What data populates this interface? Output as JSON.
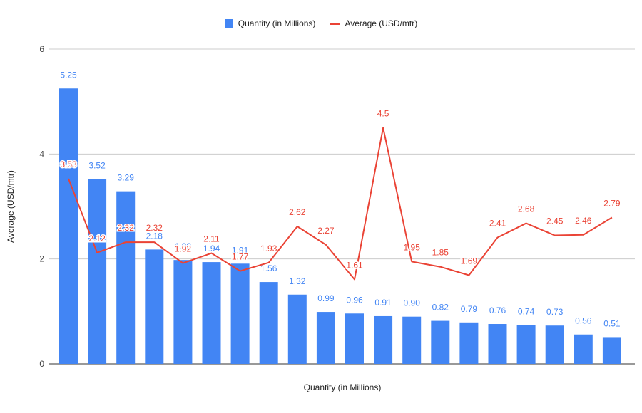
{
  "chart_data": {
    "type": "bar+line",
    "xlabel": "Quantity (in Millions)",
    "ylabel": "Average (USD/mtr)",
    "ylim": [
      0,
      6
    ],
    "yticks": [
      0,
      2,
      4,
      6
    ],
    "grid": true,
    "legend_position": "top",
    "series": [
      {
        "name": "Quantity (in Millions)",
        "type": "bar",
        "color": "#4285f4",
        "values": [
          5.25,
          3.52,
          3.29,
          2.18,
          1.98,
          1.94,
          1.91,
          1.56,
          1.32,
          0.99,
          0.96,
          0.91,
          0.9,
          0.82,
          0.79,
          0.76,
          0.74,
          0.73,
          0.56,
          0.51
        ],
        "labels": [
          "5.25",
          "3.52",
          "3.29",
          "2.18",
          "1.98",
          "1.94",
          "1.91",
          "1.56",
          "1.32",
          "0.99",
          "0.96",
          "0.91",
          "0.90",
          "0.82",
          "0.79",
          "0.76",
          "0.74",
          "0.73",
          "0.56",
          "0.51"
        ]
      },
      {
        "name": "Average (USD/mtr)",
        "type": "line",
        "color": "#ea4335",
        "values": [
          3.53,
          2.12,
          2.32,
          2.32,
          1.92,
          2.11,
          1.77,
          1.93,
          2.62,
          2.27,
          1.61,
          4.5,
          1.95,
          1.85,
          1.69,
          2.41,
          2.68,
          2.45,
          2.46,
          2.79
        ],
        "labels": [
          "3.53",
          "2.12",
          "2.32",
          "2.32",
          "1.92",
          "2.11",
          "1.77",
          "1.93",
          "2.62",
          "2.27",
          "1.61",
          "4.5",
          "1.95",
          "1.85",
          "1.69",
          "2.41",
          "2.68",
          "2.45",
          "2.46",
          "2.79"
        ]
      }
    ]
  }
}
